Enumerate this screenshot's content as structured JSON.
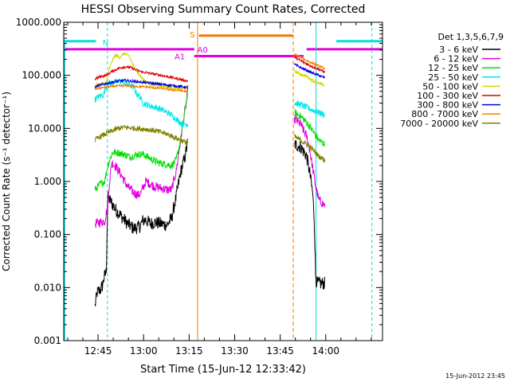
{
  "chart_data": {
    "type": "line",
    "title": "HESSI Observing Summary Count Rates, Corrected",
    "xlabel": "Start Time (15-Jun-12 12:33:42)",
    "ylabel": "Corrected Count Rate (s⁻¹ detector⁻¹)",
    "y_scale": "log",
    "ylim": [
      0.001,
      1000
    ],
    "xlim_minutes": [
      0,
      105
    ],
    "x_ticks": [
      {
        "label": "12:45",
        "minute": 11.3
      },
      {
        "label": "13:00",
        "minute": 26.3
      },
      {
        "label": "13:15",
        "minute": 41.3
      },
      {
        "label": "13:30",
        "minute": 56.3
      },
      {
        "label": "13:45",
        "minute": 71.3
      },
      {
        "label": "14:00",
        "minute": 86.3
      }
    ],
    "y_ticks": [
      "1000.000",
      "100.000",
      "10.000",
      "1.000",
      "0.100",
      "0.010",
      "0.001"
    ],
    "legend_title": "Det 1,3,5,6,7,9",
    "legend_position": "right",
    "footer": "15-Jun-2012 23:45",
    "flags": [
      {
        "label": "N",
        "color": "#00e0e0"
      },
      {
        "label": "S",
        "color": "#f07800"
      },
      {
        "label": "A0",
        "color": "#e000e0"
      },
      {
        "label": "A1",
        "color": "#e000e0"
      }
    ],
    "series": [
      {
        "name": "3 - 6 keV",
        "color": "#000000",
        "seg1": [
          [
            10.3,
            0.0045
          ],
          [
            11,
            0.008
          ],
          [
            12,
            0.009
          ],
          [
            12.8,
            0.011
          ],
          [
            13.2,
            0.015
          ],
          [
            14,
            0.02
          ],
          [
            14.5,
            0.5
          ],
          [
            15.5,
            0.42
          ],
          [
            17,
            0.3
          ],
          [
            19,
            0.22
          ],
          [
            21,
            0.16
          ],
          [
            23,
            0.13
          ],
          [
            25,
            0.14
          ],
          [
            26,
            0.18
          ],
          [
            27,
            0.19
          ],
          [
            28.5,
            0.16
          ],
          [
            30,
            0.17
          ],
          [
            32,
            0.16
          ],
          [
            34,
            0.15
          ],
          [
            35.5,
            0.2
          ],
          [
            37,
            0.5
          ],
          [
            38.5,
            1.5
          ],
          [
            40,
            3.0
          ],
          [
            40.8,
            5.5
          ]
        ],
        "seg2": [
          [
            76,
            5.0
          ],
          [
            78,
            4.5
          ],
          [
            80,
            3.0
          ],
          [
            81,
            1.5
          ],
          [
            82,
            0.6
          ],
          [
            82.5,
            0.2
          ],
          [
            83,
            0.015
          ],
          [
            83.5,
            0.012
          ],
          [
            86,
            0.012
          ]
        ]
      },
      {
        "name": "6 - 12 keV",
        "color": "#e000e0",
        "seg1": [
          [
            10.3,
            0.16
          ],
          [
            12,
            0.17
          ],
          [
            13.5,
            0.18
          ],
          [
            14.5,
            0.35
          ],
          [
            15,
            0.9
          ],
          [
            15.8,
            2.3
          ],
          [
            17,
            2.0
          ],
          [
            19,
            1.3
          ],
          [
            21,
            0.8
          ],
          [
            23,
            0.62
          ],
          [
            24.5,
            0.55
          ],
          [
            25.5,
            0.62
          ],
          [
            27,
            1.0
          ],
          [
            28.5,
            0.9
          ],
          [
            30,
            0.8
          ],
          [
            32,
            0.75
          ],
          [
            34,
            0.7
          ],
          [
            35.5,
            0.7
          ],
          [
            37,
            1.5
          ],
          [
            38.5,
            6
          ],
          [
            39.5,
            15
          ],
          [
            40.5,
            35
          ],
          [
            41,
            60
          ]
        ],
        "seg2": [
          [
            76,
            15
          ],
          [
            78,
            12
          ],
          [
            80,
            7
          ],
          [
            81,
            4
          ],
          [
            82,
            1.8
          ],
          [
            83,
            0.8
          ],
          [
            84,
            0.45
          ],
          [
            86,
            0.35
          ]
        ]
      },
      {
        "name": "12 - 25 keV",
        "color": "#00e000",
        "seg1": [
          [
            10.3,
            0.7
          ],
          [
            12,
            0.9
          ],
          [
            13.5,
            1.0
          ],
          [
            14.5,
            2.0
          ],
          [
            16,
            3.5
          ],
          [
            18,
            3.5
          ],
          [
            20,
            3.2
          ],
          [
            22,
            2.9
          ],
          [
            24,
            3.2
          ],
          [
            26,
            3.3
          ],
          [
            28,
            2.8
          ],
          [
            30,
            2.4
          ],
          [
            32,
            2.2
          ],
          [
            34,
            2.1
          ],
          [
            35.5,
            2.0
          ],
          [
            37,
            2.5
          ],
          [
            38.5,
            6
          ],
          [
            39.5,
            15
          ],
          [
            40.5,
            35
          ],
          [
            41,
            60
          ]
        ],
        "seg2": [
          [
            76,
            20
          ],
          [
            78,
            17
          ],
          [
            80,
            13
          ],
          [
            82,
            9
          ],
          [
            84,
            6
          ],
          [
            86,
            5
          ]
        ]
      },
      {
        "name": "25 - 50 keV",
        "color": "#00e8e8",
        "seg1": [
          [
            10.3,
            35
          ],
          [
            11.5,
            40
          ],
          [
            13,
            42
          ],
          [
            14,
            60
          ],
          [
            15,
            70
          ],
          [
            17,
            75
          ],
          [
            19,
            78
          ],
          [
            21,
            70
          ],
          [
            23,
            60
          ],
          [
            24,
            45
          ],
          [
            25,
            40
          ],
          [
            26,
            30
          ],
          [
            28,
            27
          ],
          [
            30,
            25
          ],
          [
            32,
            23
          ],
          [
            34,
            20
          ],
          [
            35.5,
            18
          ],
          [
            37,
            15
          ],
          [
            39,
            12
          ],
          [
            41,
            12
          ]
        ],
        "seg2": [
          [
            76,
            30
          ],
          [
            78,
            28
          ],
          [
            80,
            25
          ],
          [
            82,
            22
          ],
          [
            84,
            20
          ],
          [
            86,
            18
          ]
        ]
      },
      {
        "name": "50 - 100 keV",
        "color": "#d8d800",
        "seg1": [
          [
            10.3,
            65
          ],
          [
            12,
            68
          ],
          [
            14,
            72
          ],
          [
            15,
            130
          ],
          [
            16,
            190
          ],
          [
            17,
            240
          ],
          [
            18.5,
            220
          ],
          [
            20,
            260
          ],
          [
            21.5,
            230
          ],
          [
            23,
            150
          ],
          [
            24.5,
            110
          ],
          [
            26,
            85
          ],
          [
            28,
            70
          ],
          [
            30,
            66
          ],
          [
            32,
            64
          ],
          [
            34,
            62
          ],
          [
            36,
            58
          ],
          [
            38,
            55
          ],
          [
            40,
            60
          ],
          [
            41,
            62
          ]
        ],
        "seg2": [
          [
            76,
            120
          ],
          [
            78,
            105
          ],
          [
            80,
            95
          ],
          [
            82,
            80
          ],
          [
            84,
            70
          ],
          [
            86,
            65
          ]
        ]
      },
      {
        "name": "100 - 300 keV",
        "color": "#e00000",
        "seg1": [
          [
            10.3,
            85
          ],
          [
            12,
            95
          ],
          [
            14,
            100
          ],
          [
            16,
            120
          ],
          [
            18,
            135
          ],
          [
            20,
            145
          ],
          [
            22,
            140
          ],
          [
            24,
            125
          ],
          [
            26,
            115
          ],
          [
            28,
            110
          ],
          [
            30,
            105
          ],
          [
            32,
            100
          ],
          [
            34,
            95
          ],
          [
            36,
            90
          ],
          [
            38,
            85
          ],
          [
            40,
            80
          ],
          [
            41,
            78
          ]
        ],
        "seg2": [
          [
            76,
            220
          ],
          [
            78,
            190
          ],
          [
            80,
            165
          ],
          [
            82,
            145
          ],
          [
            84,
            130
          ],
          [
            86,
            115
          ]
        ]
      },
      {
        "name": "300 - 800 keV",
        "color": "#0000e0",
        "seg1": [
          [
            10.3,
            60
          ],
          [
            12,
            65
          ],
          [
            14,
            70
          ],
          [
            16,
            74
          ],
          [
            18,
            78
          ],
          [
            20,
            80
          ],
          [
            22,
            78
          ],
          [
            24,
            76
          ],
          [
            26,
            74
          ],
          [
            28,
            72
          ],
          [
            30,
            70
          ],
          [
            32,
            68
          ],
          [
            34,
            66
          ],
          [
            36,
            64
          ],
          [
            38,
            62
          ],
          [
            40,
            60
          ],
          [
            41,
            58
          ]
        ],
        "seg2": [
          [
            76,
            160
          ],
          [
            78,
            140
          ],
          [
            80,
            125
          ],
          [
            82,
            110
          ],
          [
            84,
            100
          ],
          [
            86,
            90
          ]
        ]
      },
      {
        "name": "800 - 7000 keV",
        "color": "#f08000",
        "seg1": [
          [
            10.3,
            55
          ],
          [
            12,
            58
          ],
          [
            14,
            60
          ],
          [
            16,
            62
          ],
          [
            18,
            63
          ],
          [
            20,
            64
          ],
          [
            22,
            63
          ],
          [
            24,
            62
          ],
          [
            26,
            61
          ],
          [
            28,
            60
          ],
          [
            30,
            58
          ],
          [
            32,
            57
          ],
          [
            34,
            55
          ],
          [
            36,
            53
          ],
          [
            38,
            52
          ],
          [
            40,
            50
          ],
          [
            41,
            50
          ]
        ],
        "seg2": [
          [
            76,
            250
          ],
          [
            78,
            220
          ],
          [
            80,
            190
          ],
          [
            82,
            170
          ],
          [
            84,
            150
          ],
          [
            86,
            135
          ]
        ]
      },
      {
        "name": "7000 - 20000 keV",
        "color": "#808000",
        "seg1": [
          [
            10.3,
            6
          ],
          [
            12,
            7
          ],
          [
            14,
            8
          ],
          [
            16,
            9
          ],
          [
            18,
            10
          ],
          [
            20,
            10.5
          ],
          [
            22,
            10.2
          ],
          [
            24,
            10
          ],
          [
            26,
            9.8
          ],
          [
            28,
            9.5
          ],
          [
            30,
            9
          ],
          [
            32,
            8.5
          ],
          [
            34,
            7.8
          ],
          [
            36,
            7
          ],
          [
            38,
            6.2
          ],
          [
            40,
            5.5
          ],
          [
            41,
            5.2
          ]
        ],
        "seg2": [
          [
            76,
            7
          ],
          [
            78,
            6
          ],
          [
            80,
            5
          ],
          [
            82,
            4
          ],
          [
            84,
            3
          ],
          [
            86,
            2.5
          ]
        ]
      }
    ]
  }
}
